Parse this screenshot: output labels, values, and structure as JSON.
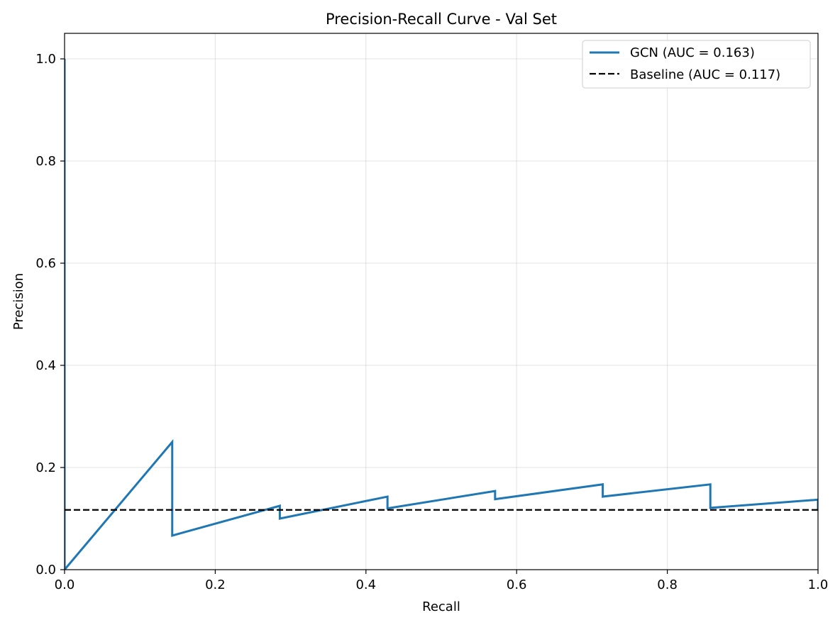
{
  "chart_data": {
    "type": "line",
    "title": "Precision-Recall Curve - Val Set",
    "xlabel": "Recall",
    "ylabel": "Precision",
    "xlim": [
      0,
      1
    ],
    "ylim": [
      0,
      1.05
    ],
    "xticks": [
      "0.0",
      "0.2",
      "0.4",
      "0.6",
      "0.8",
      "1.0"
    ],
    "yticks": [
      "0.0",
      "0.2",
      "0.4",
      "0.6",
      "0.8",
      "1.0"
    ],
    "grid": true,
    "legend_position": "top-right",
    "series": [
      {
        "name": "GCN (AUC = 0.163)",
        "color": "#1f77b4",
        "style": "solid",
        "x": [
          0.0,
          0.0,
          0.0,
          0.1429,
          0.1429,
          0.2857,
          0.2857,
          0.4286,
          0.4286,
          0.5714,
          0.5714,
          0.7143,
          0.7143,
          0.8571,
          0.8571,
          1.0,
          1.0
        ],
        "y": [
          1.0,
          0.0,
          0.0,
          0.25,
          0.0667,
          0.125,
          0.1,
          0.143,
          0.12,
          0.154,
          0.138,
          0.167,
          0.143,
          0.167,
          0.121,
          0.137,
          0.117
        ]
      },
      {
        "name": "Baseline (AUC = 0.117)",
        "color": "#000000",
        "style": "dashed",
        "x": [
          0,
          1
        ],
        "y": [
          0.117,
          0.117
        ]
      }
    ]
  }
}
